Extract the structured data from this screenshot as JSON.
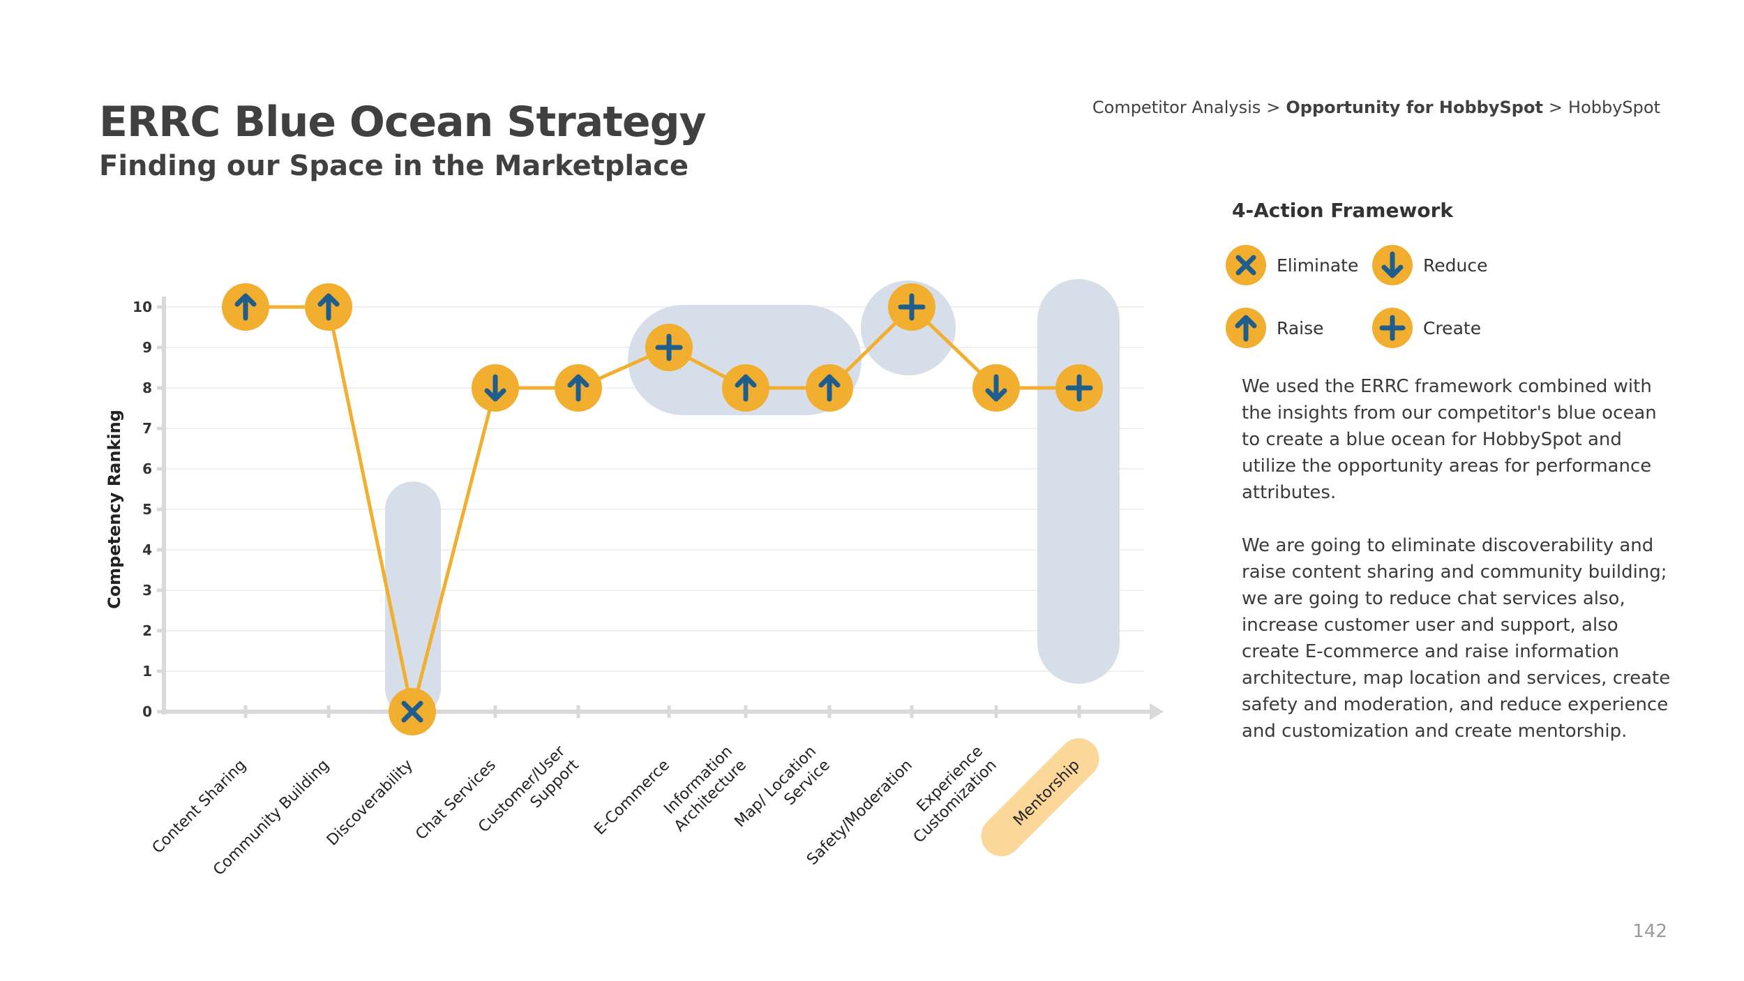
{
  "header": {
    "title": "ERRC Blue Ocean Strategy",
    "subtitle": "Finding our Space in the Marketplace"
  },
  "breadcrumb": {
    "items": [
      "Competitor Analysis",
      "Opportunity for HobbySpot",
      "HobbySpot"
    ],
    "current_index": 1,
    "separator": ">"
  },
  "legend": {
    "title": "4-Action Framework",
    "items": [
      {
        "label": "Eliminate",
        "action": "eliminate",
        "icon": "x-icon"
      },
      {
        "label": "Reduce",
        "action": "reduce",
        "icon": "arrow-down-icon"
      },
      {
        "label": "Raise",
        "action": "raise",
        "icon": "arrow-up-icon"
      },
      {
        "label": "Create",
        "action": "create",
        "icon": "plus-icon"
      }
    ]
  },
  "description": {
    "paragraph1": "We used the ERRC framework combined with the insights from our competitor's blue ocean to create a blue ocean for HobbySpot and utilize the opportunity areas for performance attributes.",
    "paragraph2": "We are going to eliminate discoverability and raise content sharing and community building; we are going to reduce chat services also, increase customer user and support, also create E-commerce and raise information architecture, map location and services, create safety and moderation, and reduce experience and customization and create mentorship."
  },
  "page_number": "142",
  "colors": {
    "marker_fill": "#F2AE2E",
    "icon": "#1F5E8C",
    "line": "#F2AE2E",
    "highlight": "#D6DEEA",
    "mentorship_highlight": "#FBD79A",
    "axis": "#D9D9D9"
  },
  "chart_data": {
    "type": "line",
    "ylabel": "Competency Ranking",
    "xlabel": "",
    "ylim": [
      0,
      10
    ],
    "yticks": [
      "0",
      "1",
      "2",
      "3",
      "4",
      "5",
      "6",
      "7",
      "8",
      "9",
      "10"
    ],
    "categories": [
      "Content Sharing",
      "Community Building",
      "Discoverability",
      "Chat Services",
      "Customer/User Support",
      "E-Commerce",
      "Information Architecture",
      "Map/ Location Service",
      "Safety/Moderation",
      "Experience Customization",
      "Mentorship"
    ],
    "category_lines": [
      [
        "Content Sharing"
      ],
      [
        "Community Building"
      ],
      [
        "Discoverability"
      ],
      [
        "Chat Services"
      ],
      [
        "Customer/User",
        "Support"
      ],
      [
        "E-Commerce"
      ],
      [
        "Information",
        "Architecture"
      ],
      [
        "Map/ Location",
        "Service"
      ],
      [
        "Safety/Moderation"
      ],
      [
        "Experience",
        "Customization"
      ],
      [
        "Mentorship"
      ]
    ],
    "values": [
      10,
      10,
      0,
      8,
      8,
      9,
      8,
      8,
      10,
      8,
      8
    ],
    "actions": [
      "raise",
      "raise",
      "eliminate",
      "reduce",
      "raise",
      "create",
      "raise",
      "raise",
      "create",
      "reduce",
      "create"
    ],
    "highlighted_category": "Mentorship"
  }
}
